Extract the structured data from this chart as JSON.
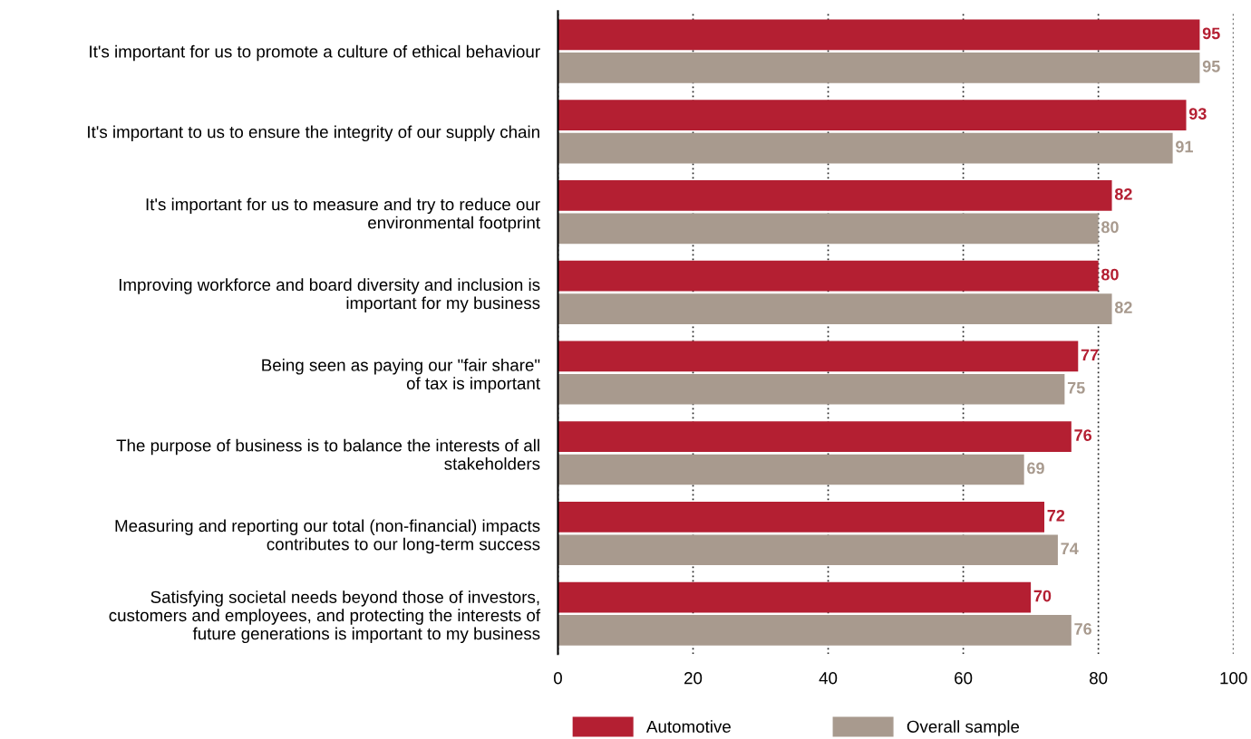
{
  "chart_data": {
    "type": "bar",
    "orientation": "horizontal",
    "categories": [
      "It's important for us to promote a culture of ethical behaviour",
      "It's important to us to ensure the integrity of our supply chain",
      "It's important for us to measure and try to reduce our\nenvironmental footprint",
      "Improving workforce and board diversity and inclusion is\nimportant for my business",
      "Being seen as paying our \"fair share\"\nof tax is important",
      "The purpose of business is to balance the interests of all\nstakeholders",
      "Measuring and reporting our total (non-financial) impacts\ncontributes to our long-term success",
      "Satisfying societal needs beyond those of investors,\ncustomers and employees, and protecting the interests of\nfuture generations is important to my business"
    ],
    "series": [
      {
        "name": "Automotive",
        "color": "#b41f32",
        "values": [
          95,
          93,
          82,
          80,
          77,
          76,
          72,
          70
        ]
      },
      {
        "name": "Overall sample",
        "color": "#a89a8e",
        "values": [
          95,
          91,
          80,
          82,
          75,
          69,
          74,
          76
        ]
      }
    ],
    "xlim": [
      0,
      100
    ],
    "xticks": [
      0,
      20,
      40,
      60,
      80,
      100
    ],
    "grid": "x",
    "data_labels": true,
    "legend": "bottom"
  }
}
